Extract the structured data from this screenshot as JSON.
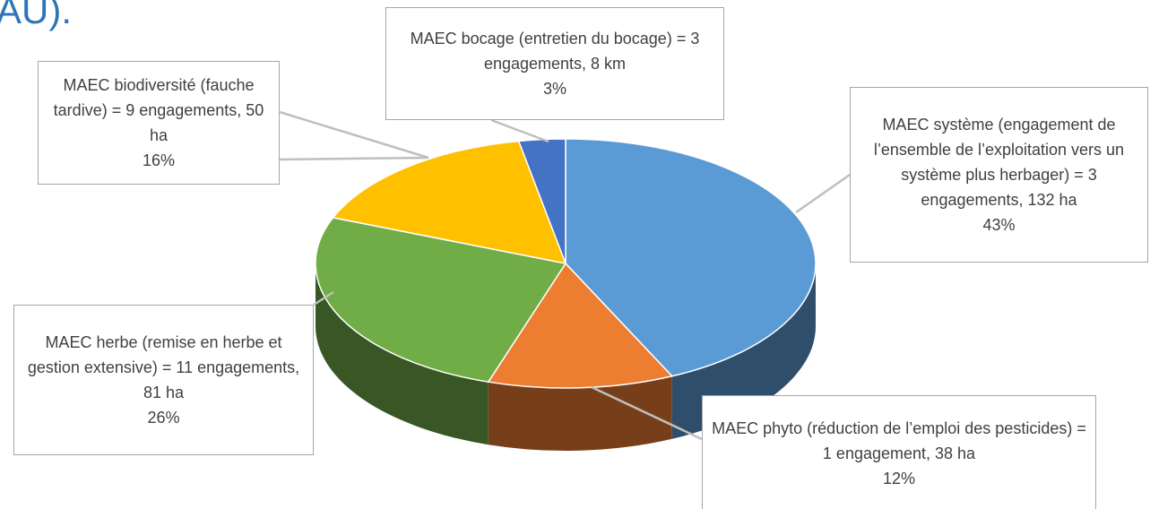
{
  "chart_data": {
    "type": "pie3d",
    "title": "AU).",
    "categories": [
      "MAEC système (engagement de l’ensemble de l’exploitation vers un système plus herbager) = 3 engagements, 132 ha",
      "MAEC phyto (réduction de l’emploi des pesticides) = 1 engagement, 38 ha",
      "MAEC herbe (remise en herbe et gestion extensive) = 11 engagements, 81 ha",
      "MAEC biodiversité (fauche tardive) = 9 engagements, 50 ha",
      "MAEC bocage (entretien du bocage) = 3 engagements, 8 km"
    ],
    "values": [
      43,
      12,
      26,
      16,
      3
    ],
    "value_labels": [
      "43%",
      "12%",
      "26%",
      "16%",
      "3%"
    ],
    "colors": [
      "#5b9bd5",
      "#ed7d31",
      "#70ad47",
      "#ffc000",
      "#4472c4"
    ]
  }
}
